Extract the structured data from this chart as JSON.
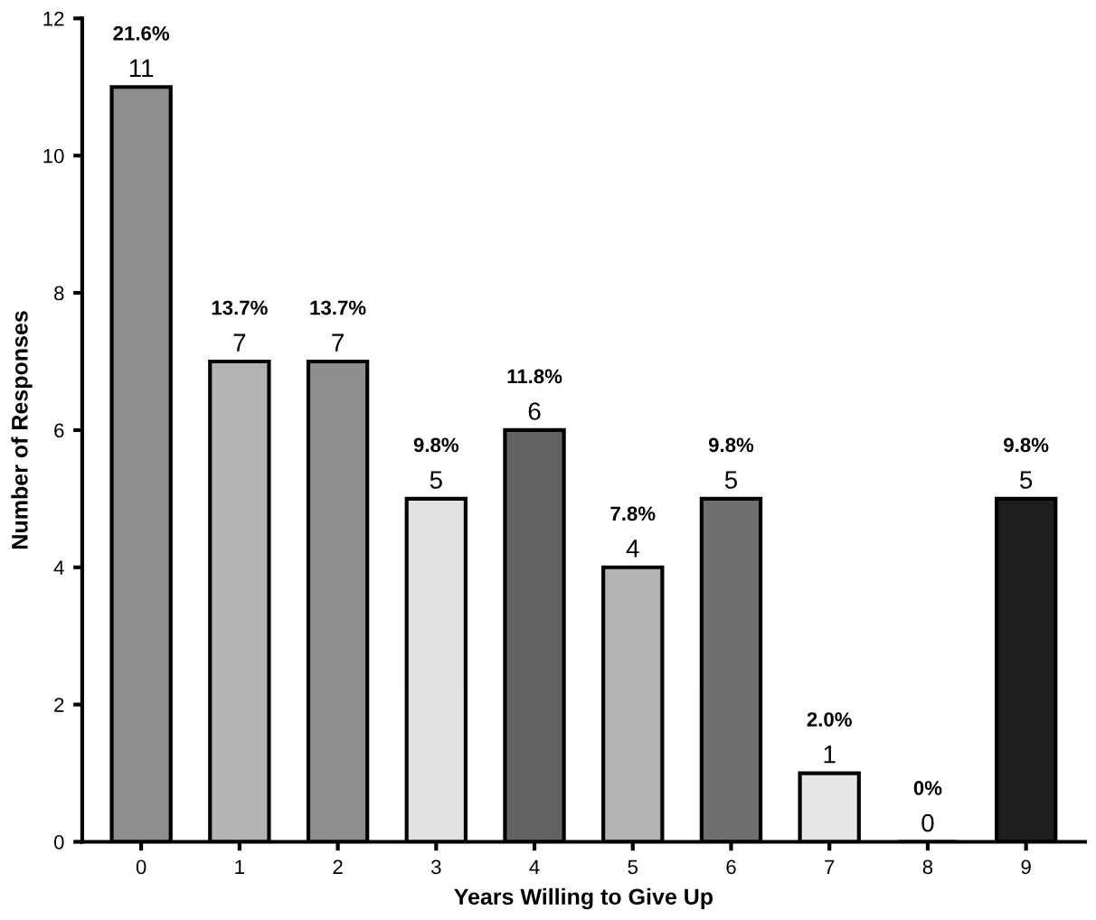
{
  "chart_data": {
    "type": "bar",
    "xlabel": "Years Willing to Give Up",
    "ylabel": "Number of Responses",
    "categories": [
      "0",
      "1",
      "2",
      "3",
      "4",
      "5",
      "6",
      "7",
      "8",
      "9"
    ],
    "values": [
      11,
      7,
      7,
      5,
      6,
      4,
      5,
      1,
      0,
      5
    ],
    "colors": [
      "#8e8e8e",
      "#b3b3b3",
      "#8e8e8e",
      "#e2e2e2",
      "#636363",
      "#b3b3b3",
      "#6e6e6e",
      "#e6e6e6",
      "#ffffff",
      "#1e1e1e"
    ],
    "ylim": [
      0,
      12
    ],
    "yticks": [
      0,
      2,
      4,
      6,
      8,
      10,
      12
    ],
    "grid": false,
    "data_labels": true,
    "annotations": [
      {
        "text": "21.6%",
        "x": "0",
        "y": 11
      },
      {
        "text": "13.7%",
        "x": "1",
        "y": 7
      },
      {
        "text": "13.7%",
        "x": "2",
        "y": 7
      },
      {
        "text": "9.8%",
        "x": "3",
        "y": 5
      },
      {
        "text": "11.8%",
        "x": "4",
        "y": 6
      },
      {
        "text": "7.8%",
        "x": "5",
        "y": 4
      },
      {
        "text": "9.8%",
        "x": "6",
        "y": 5
      },
      {
        "text": "2.0%",
        "x": "7",
        "y": 1
      },
      {
        "text": "0%",
        "x": "8",
        "y": 0
      },
      {
        "text": "9.8%",
        "x": "9",
        "y": 5
      }
    ]
  }
}
